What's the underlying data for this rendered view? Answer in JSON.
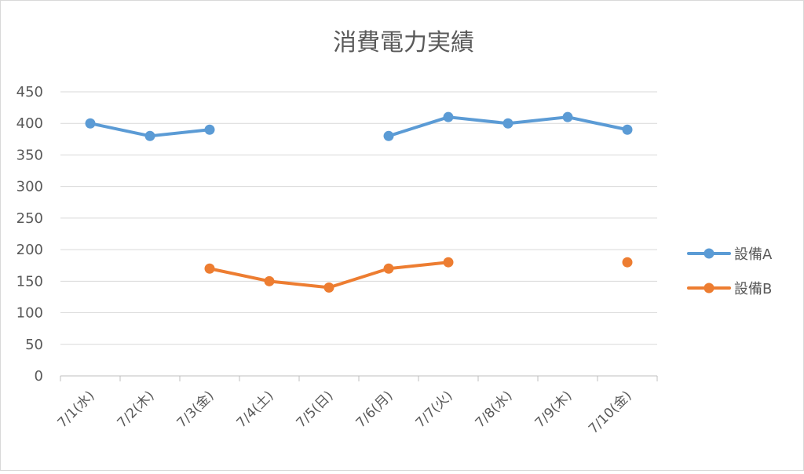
{
  "chart_data": {
    "type": "line",
    "title": "消費電力実績",
    "xlabel": "",
    "ylabel": "",
    "categories": [
      "7/1(水)",
      "7/2(木)",
      "7/3(金)",
      "7/4(土)",
      "7/5(日)",
      "7/6(月)",
      "7/7(火)",
      "7/8(水)",
      "7/9(木)",
      "7/10(金)"
    ],
    "ylim": [
      0,
      450
    ],
    "yticks": [
      0,
      50,
      100,
      150,
      200,
      250,
      300,
      350,
      400,
      450
    ],
    "grid": true,
    "legend_position": "right",
    "series": [
      {
        "name": "設備A",
        "color": "#5b9bd5",
        "values": [
          400,
          380,
          390,
          null,
          null,
          380,
          410,
          400,
          410,
          390
        ]
      },
      {
        "name": "設備B",
        "color": "#ed7d31",
        "values": [
          null,
          null,
          170,
          150,
          140,
          170,
          180,
          null,
          null,
          180
        ]
      }
    ]
  }
}
